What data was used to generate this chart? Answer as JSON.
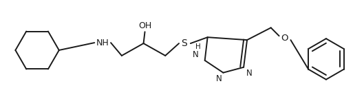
{
  "background_color": "#ffffff",
  "line_color": "#1a1a1a",
  "line_width": 1.4,
  "figsize": [
    5.29,
    1.41
  ],
  "dpi": 100,
  "xlim": [
    0,
    529
  ],
  "ylim": [
    0,
    141
  ]
}
